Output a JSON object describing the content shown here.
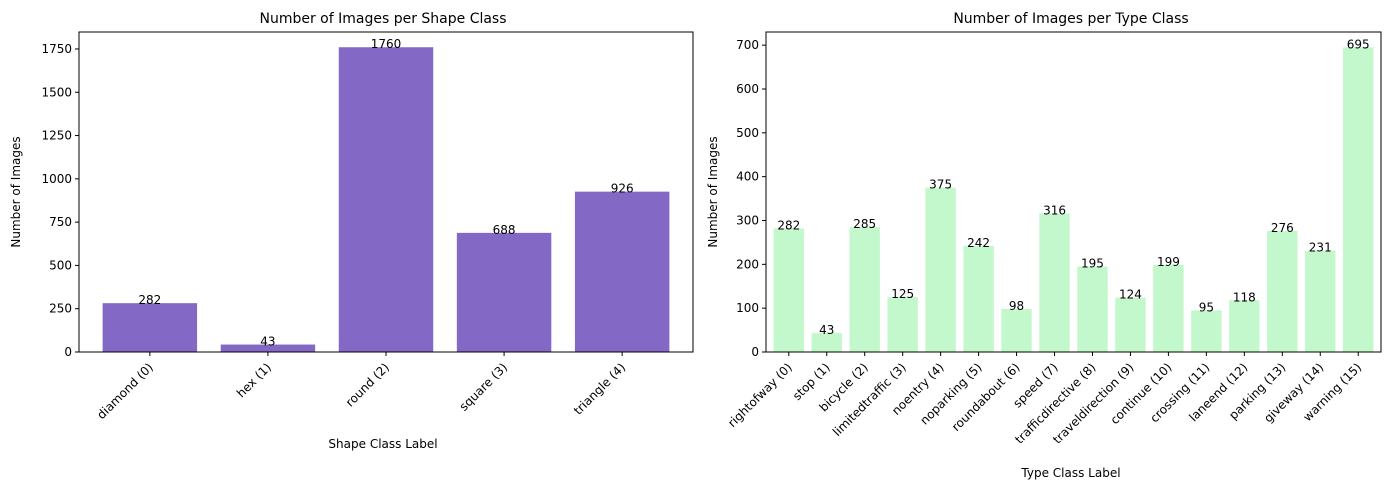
{
  "chart_data": [
    {
      "type": "bar",
      "title": "Number of Images per Shape Class",
      "xlabel": "Shape Class Label",
      "ylabel": "Number of Images",
      "categories": [
        "diamond (0)",
        "hex (1)",
        "round (2)",
        "square (3)",
        "triangle (4)"
      ],
      "values": [
        282,
        43,
        1760,
        688,
        926
      ],
      "ylim": [
        0,
        1848
      ],
      "yticks": [
        0,
        250,
        500,
        750,
        1000,
        1250,
        1500,
        1750
      ],
      "color": "#8368c6",
      "grid": false
    },
    {
      "type": "bar",
      "title": "Number of Images per Type Class",
      "xlabel": "Type Class Label",
      "ylabel": "Number of Images",
      "categories": [
        "rightofway (0)",
        "stop (1)",
        "bicycle (2)",
        "limitedtraffic (3)",
        "noentry (4)",
        "noparking (5)",
        "roundabout (6)",
        "speed (7)",
        "trafficdirective (8)",
        "traveldirection (9)",
        "continue (10)",
        "crossing (11)",
        "laneend (12)",
        "parking (13)",
        "giveway (14)",
        "warning (15)"
      ],
      "values": [
        282,
        43,
        285,
        125,
        375,
        242,
        98,
        316,
        195,
        124,
        199,
        95,
        118,
        276,
        231,
        695
      ],
      "ylim": [
        0,
        730
      ],
      "yticks": [
        0,
        100,
        200,
        300,
        400,
        500,
        600,
        700
      ],
      "color": "#c3f7cc",
      "grid": false
    }
  ]
}
